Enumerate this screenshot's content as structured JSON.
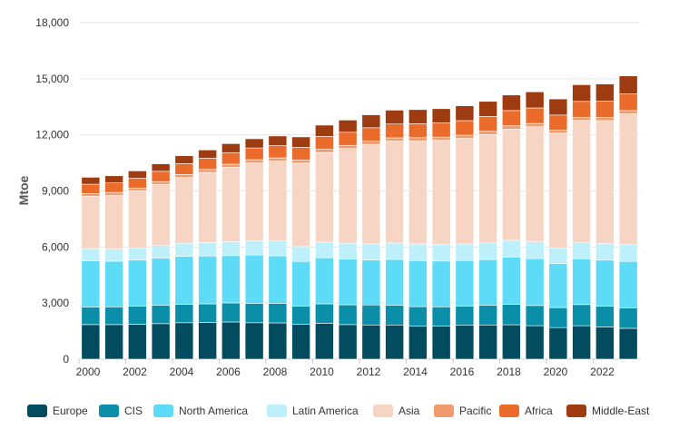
{
  "chart_data": {
    "type": "bar",
    "stacked": true,
    "ylabel": "Mtoe",
    "ylim": [
      0,
      18000
    ],
    "y_ticks": [
      "0",
      "3,000",
      "6,000",
      "9,000",
      "12,000",
      "15,000",
      "18,000"
    ],
    "y_tick_values": [
      0,
      3000,
      6000,
      9000,
      12000,
      15000,
      18000
    ],
    "x_tick_labels": [
      "2000",
      "2002",
      "2004",
      "2006",
      "2008",
      "2010",
      "2012",
      "2014",
      "2016",
      "2018",
      "2020",
      "2022"
    ],
    "grid": true,
    "legend_position": "bottom",
    "categories": [
      "2000",
      "2001",
      "2002",
      "2003",
      "2004",
      "2005",
      "2006",
      "2007",
      "2008",
      "2009",
      "2010",
      "2011",
      "2012",
      "2013",
      "2014",
      "2015",
      "2016",
      "2017",
      "2018",
      "2019",
      "2020",
      "2021",
      "2022",
      "2023"
    ],
    "series": [
      {
        "name": "Europe",
        "color": "#034c5f",
        "values": [
          1850,
          1850,
          1870,
          1900,
          1950,
          1960,
          1990,
          1950,
          1940,
          1860,
          1920,
          1850,
          1830,
          1830,
          1760,
          1780,
          1810,
          1830,
          1840,
          1790,
          1690,
          1790,
          1720,
          1650
        ]
      },
      {
        "name": "CIS",
        "color": "#0b8fa9",
        "values": [
          930,
          950,
          960,
          980,
          990,
          1000,
          1020,
          1040,
          1050,
          980,
          1040,
          1060,
          1070,
          1050,
          1050,
          1020,
          1030,
          1060,
          1100,
          1080,
          1070,
          1130,
          1110,
          1100
        ]
      },
      {
        "name": "North America",
        "color": "#5edcf7",
        "values": [
          2480,
          2440,
          2470,
          2520,
          2560,
          2560,
          2530,
          2580,
          2540,
          2390,
          2470,
          2450,
          2410,
          2460,
          2470,
          2450,
          2440,
          2440,
          2520,
          2510,
          2350,
          2450,
          2470,
          2480
        ]
      },
      {
        "name": "Latin America",
        "color": "#bdf0fb",
        "values": [
          650,
          650,
          660,
          680,
          700,
          720,
          750,
          770,
          790,
          790,
          830,
          840,
          860,
          870,
          880,
          880,
          880,
          890,
          900,
          900,
          850,
          880,
          890,
          900
        ]
      },
      {
        "name": "Asia",
        "color": "#f7d5c4",
        "values": [
          2800,
          2880,
          3040,
          3270,
          3520,
          3750,
          3970,
          4160,
          4280,
          4470,
          4800,
          5070,
          5320,
          5460,
          5520,
          5580,
          5650,
          5800,
          5950,
          6160,
          6130,
          6520,
          6570,
          7000
        ]
      },
      {
        "name": "Pacific",
        "color": "#f09a6e",
        "values": [
          150,
          150,
          150,
          150,
          160,
          160,
          170,
          170,
          170,
          170,
          170,
          170,
          170,
          170,
          170,
          170,
          170,
          170,
          170,
          170,
          170,
          170,
          170,
          170
        ]
      },
      {
        "name": "Africa",
        "color": "#eb6b2b",
        "values": [
          500,
          510,
          530,
          550,
          580,
          600,
          620,
          630,
          650,
          670,
          690,
          700,
          720,
          740,
          750,
          760,
          780,
          790,
          820,
          830,
          800,
          850,
          870,
          890
        ]
      },
      {
        "name": "Middle-East",
        "color": "#9e3b10",
        "values": [
          370,
          380,
          390,
          400,
          420,
          440,
          480,
          490,
          520,
          560,
          600,
          650,
          690,
          740,
          750,
          760,
          790,
          810,
          830,
          860,
          860,
          890,
          920,
          960
        ]
      }
    ]
  }
}
